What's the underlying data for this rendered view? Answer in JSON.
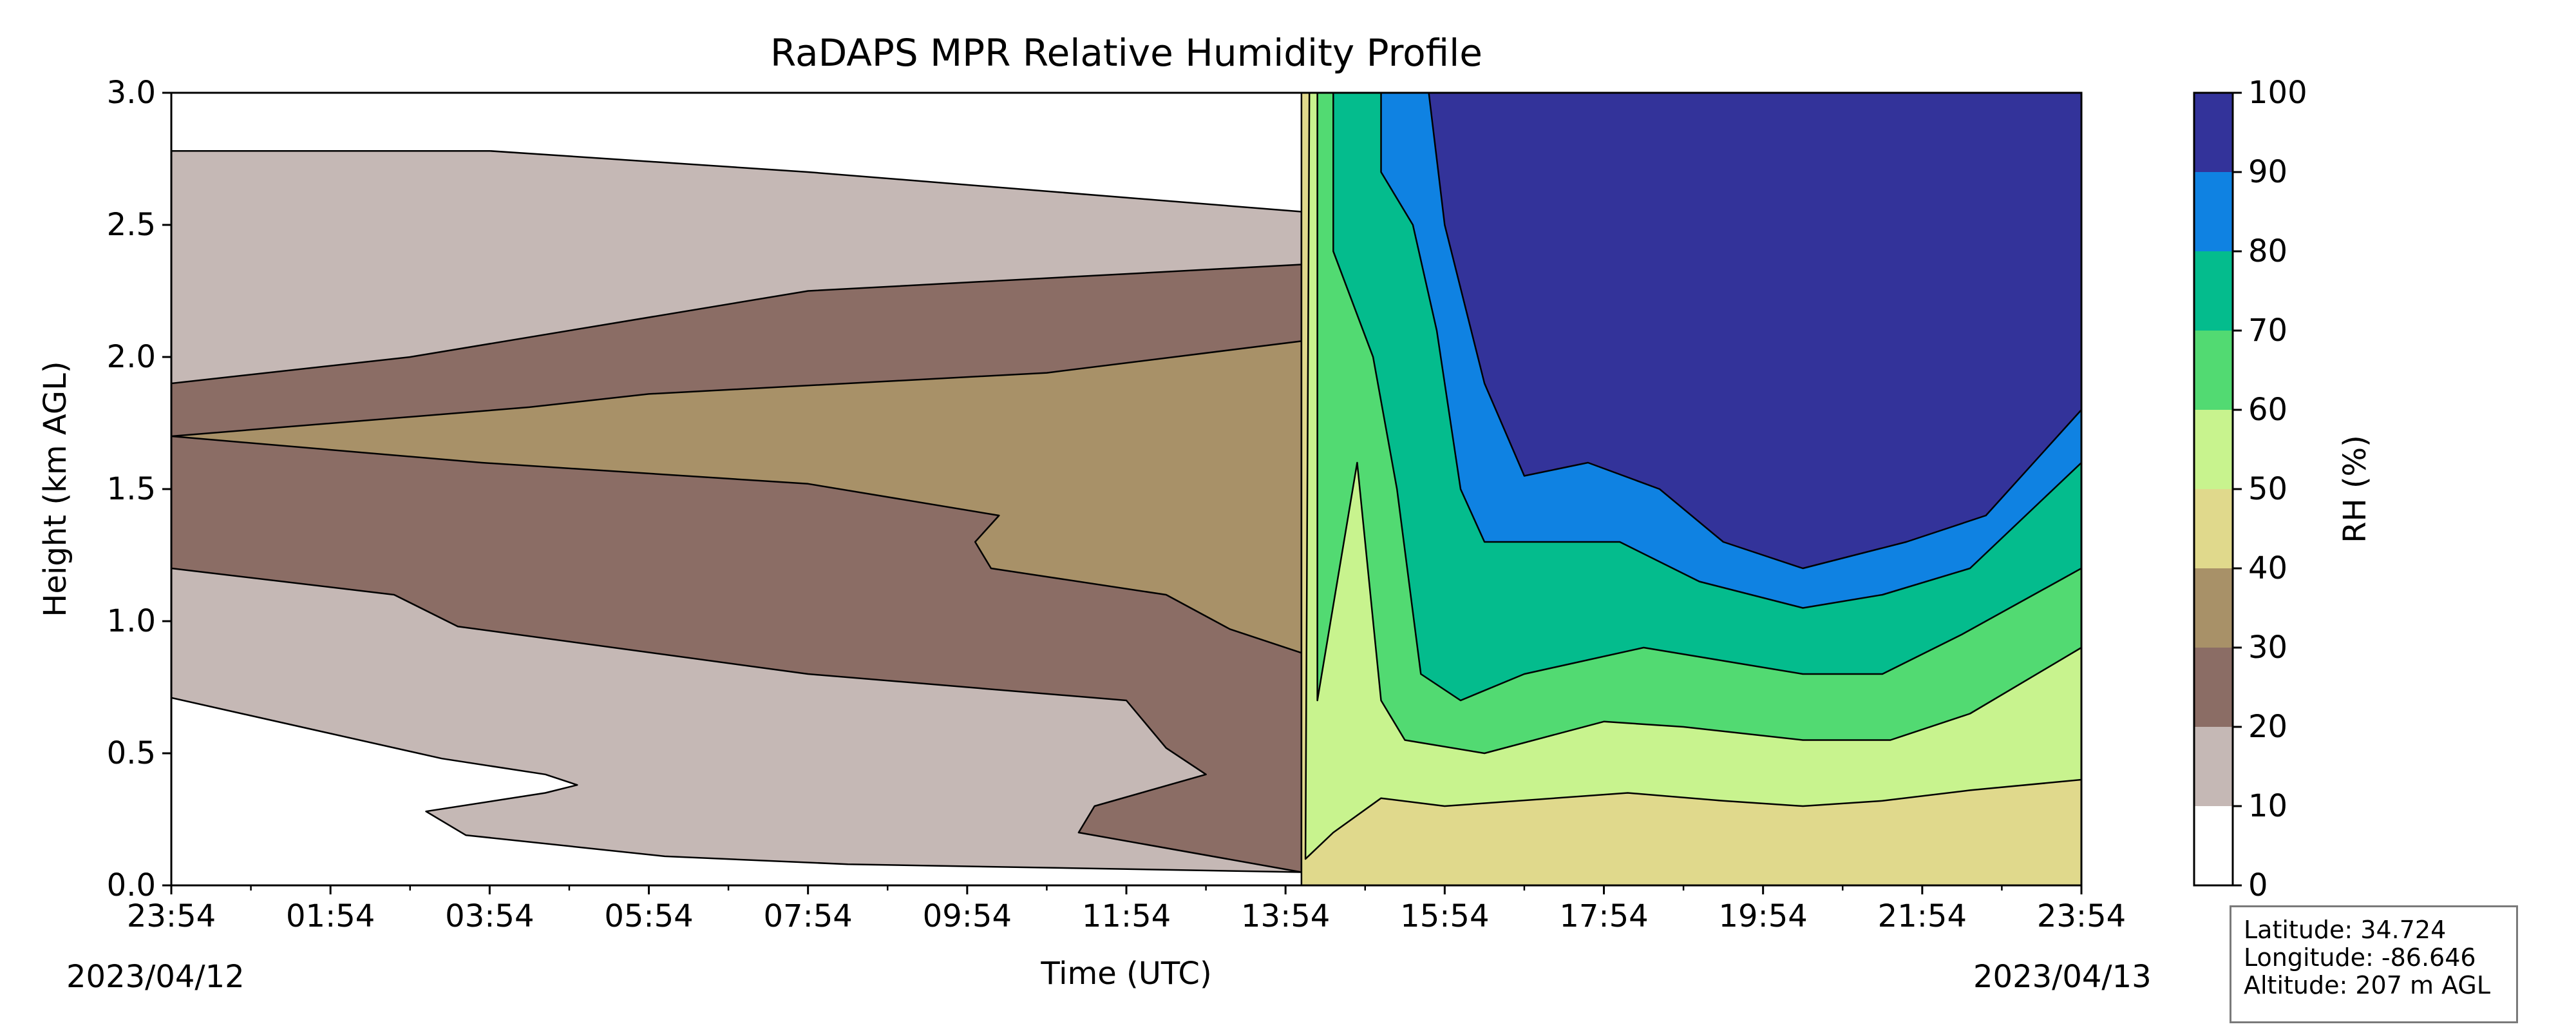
{
  "chart_data": {
    "type": "filled-contour",
    "title": "RaDAPS MPR Relative Humidity Profile",
    "xlabel": "Time (UTC)",
    "ylabel": "Height (km AGL)",
    "ylim": [
      0.0,
      3.0
    ],
    "yticks": [
      "0.0",
      "0.5",
      "1.0",
      "1.5",
      "2.0",
      "2.5",
      "3.0"
    ],
    "xtick_labels": [
      "23:54",
      "01:54",
      "03:54",
      "05:54",
      "07:54",
      "09:54",
      "11:54",
      "13:54",
      "15:54",
      "17:54",
      "19:54",
      "21:54",
      "23:54"
    ],
    "x_hours": [
      0,
      2,
      4,
      6,
      8,
      10,
      12,
      14,
      16,
      18,
      20,
      22,
      24
    ],
    "date_start": "2023/04/12",
    "date_end": "2023/04/13",
    "colorbar": {
      "label": "RH (%)",
      "levels": [
        0,
        10,
        20,
        30,
        40,
        50,
        60,
        70,
        80,
        90,
        100
      ],
      "tick_labels": [
        "0",
        "10",
        "20",
        "30",
        "40",
        "50",
        "60",
        "70",
        "80",
        "90",
        "100"
      ],
      "colors": [
        "#ffffff",
        "#c5b8b5",
        "#8b6d65",
        "#a89168",
        "#e0d98c",
        "#c8f38e",
        "#52da72",
        "#04bc8d",
        "#0f82e2",
        "#33339a"
      ]
    },
    "layers": [
      {
        "level": 20,
        "points": [
          [
            0.0,
            0.71
          ],
          [
            3.4,
            0.48
          ],
          [
            4.7,
            0.42
          ],
          [
            5.1,
            0.38
          ],
          [
            4.7,
            0.35
          ],
          [
            3.2,
            0.28
          ],
          [
            3.7,
            0.19
          ],
          [
            6.2,
            0.11
          ],
          [
            8.5,
            0.08
          ],
          [
            14.2,
            0.05
          ],
          [
            14.2,
            2.55
          ],
          [
            8.0,
            2.7
          ],
          [
            4.0,
            2.78
          ],
          [
            0.0,
            2.78
          ]
        ]
      },
      {
        "level": 30,
        "points": [
          [
            0.0,
            1.2
          ],
          [
            2.8,
            1.1
          ],
          [
            3.6,
            0.98
          ],
          [
            8.0,
            0.8
          ],
          [
            12.0,
            0.7
          ],
          [
            12.5,
            0.52
          ],
          [
            13.0,
            0.42
          ],
          [
            11.6,
            0.3
          ],
          [
            11.4,
            0.2
          ],
          [
            14.2,
            0.05
          ],
          [
            14.2,
            2.35
          ],
          [
            8.0,
            2.25
          ],
          [
            3.0,
            2.0
          ],
          [
            0.0,
            1.9
          ]
        ]
      },
      {
        "level": 40,
        "points": [
          [
            0.0,
            1.7
          ],
          [
            3.9,
            1.6
          ],
          [
            8.0,
            1.52
          ],
          [
            10.4,
            1.4
          ],
          [
            10.1,
            1.3
          ],
          [
            10.3,
            1.2
          ],
          [
            12.5,
            1.1
          ],
          [
            13.3,
            0.97
          ],
          [
            14.2,
            0.88
          ],
          [
            14.2,
            2.06
          ],
          [
            11.0,
            1.94
          ],
          [
            6.0,
            1.86
          ],
          [
            4.5,
            1.81
          ]
        ]
      },
      {
        "level": 50,
        "points": [
          [
            14.2,
            0.0
          ],
          [
            14.2,
            3.0
          ],
          [
            24.0,
            3.0
          ],
          [
            24.0,
            0.0
          ]
        ]
      },
      {
        "level": 60,
        "points": [
          [
            14.25,
            0.1
          ],
          [
            14.3,
            3.0
          ],
          [
            24.0,
            3.0
          ],
          [
            24.0,
            0.4
          ],
          [
            22.6,
            0.36
          ],
          [
            21.5,
            0.32
          ],
          [
            20.5,
            0.3
          ],
          [
            19.5,
            0.32
          ],
          [
            18.3,
            0.35
          ],
          [
            16.0,
            0.3
          ],
          [
            15.2,
            0.33
          ],
          [
            14.6,
            0.2
          ]
        ]
      },
      {
        "level": 70,
        "points": [
          [
            14.4,
            0.7
          ],
          [
            14.4,
            3.0
          ],
          [
            24.0,
            3.0
          ],
          [
            24.0,
            0.9
          ],
          [
            22.6,
            0.65
          ],
          [
            21.6,
            0.55
          ],
          [
            20.5,
            0.55
          ],
          [
            19.0,
            0.6
          ],
          [
            18.0,
            0.62
          ],
          [
            16.5,
            0.5
          ],
          [
            15.5,
            0.55
          ],
          [
            15.2,
            0.7
          ],
          [
            14.9,
            1.6
          ]
        ]
      },
      {
        "level": 80,
        "points": [
          [
            14.6,
            2.4
          ],
          [
            14.6,
            3.0
          ],
          [
            24.0,
            3.0
          ],
          [
            24.0,
            1.2
          ],
          [
            22.5,
            0.95
          ],
          [
            21.5,
            0.8
          ],
          [
            20.5,
            0.8
          ],
          [
            19.5,
            0.85
          ],
          [
            18.5,
            0.9
          ],
          [
            17.0,
            0.8
          ],
          [
            16.2,
            0.7
          ],
          [
            15.7,
            0.8
          ],
          [
            15.4,
            1.5
          ],
          [
            15.1,
            2.0
          ]
        ]
      },
      {
        "level": 90,
        "points": [
          [
            15.2,
            2.7
          ],
          [
            15.2,
            3.0
          ],
          [
            24.0,
            3.0
          ],
          [
            24.0,
            1.6
          ],
          [
            22.6,
            1.2
          ],
          [
            21.5,
            1.1
          ],
          [
            20.5,
            1.05
          ],
          [
            19.2,
            1.15
          ],
          [
            18.2,
            1.3
          ],
          [
            17.2,
            1.3
          ],
          [
            16.5,
            1.3
          ],
          [
            16.2,
            1.5
          ],
          [
            15.9,
            2.1
          ],
          [
            15.6,
            2.5
          ]
        ]
      },
      {
        "level": 100,
        "points": [
          [
            15.8,
            3.0
          ],
          [
            24.0,
            3.0
          ],
          [
            24.0,
            1.8
          ],
          [
            22.8,
            1.4
          ],
          [
            21.8,
            1.3
          ],
          [
            20.5,
            1.2
          ],
          [
            19.5,
            1.3
          ],
          [
            18.7,
            1.5
          ],
          [
            17.8,
            1.6
          ],
          [
            17.0,
            1.55
          ],
          [
            16.5,
            1.9
          ],
          [
            16.0,
            2.5
          ]
        ]
      }
    ]
  },
  "info": {
    "latitude": "Latitude: 34.724",
    "longitude": "Longitude: -86.646",
    "altitude": "Altitude: 207 m AGL"
  }
}
